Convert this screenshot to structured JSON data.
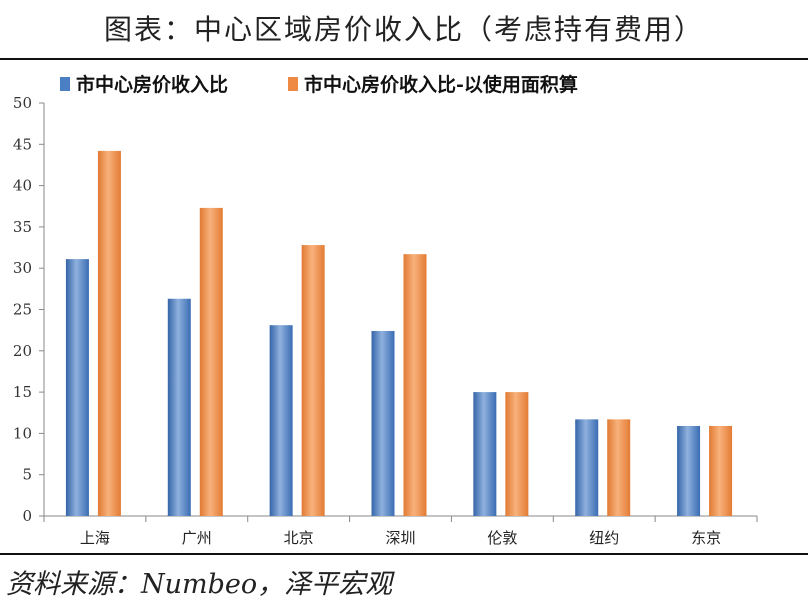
{
  "title": "图表：中心区域房价收入比（考虑持有费用）",
  "source": "资料来源：Numbeo，泽平宏观",
  "chart_data": {
    "type": "bar",
    "title": "图表：中心区域房价收入比（考虑持有费用）",
    "categories": [
      "上海",
      "广州",
      "北京",
      "深圳",
      "伦敦",
      "纽约",
      "东京"
    ],
    "series": [
      {
        "name": "市中心房价收入比",
        "color": "#4a7fc4",
        "values": [
          31.1,
          26.3,
          23.1,
          22.4,
          15.0,
          11.7,
          10.9
        ]
      },
      {
        "name": "市中心房价收入比-以使用面积算",
        "color": "#ee8a44",
        "values": [
          44.2,
          37.3,
          32.8,
          31.7,
          15.0,
          11.7,
          10.9
        ]
      }
    ],
    "ylim": [
      0,
      50
    ],
    "yticks": [
      0,
      5,
      10,
      15,
      20,
      25,
      30,
      35,
      40,
      45,
      50
    ],
    "legend": "top",
    "grid": false
  }
}
